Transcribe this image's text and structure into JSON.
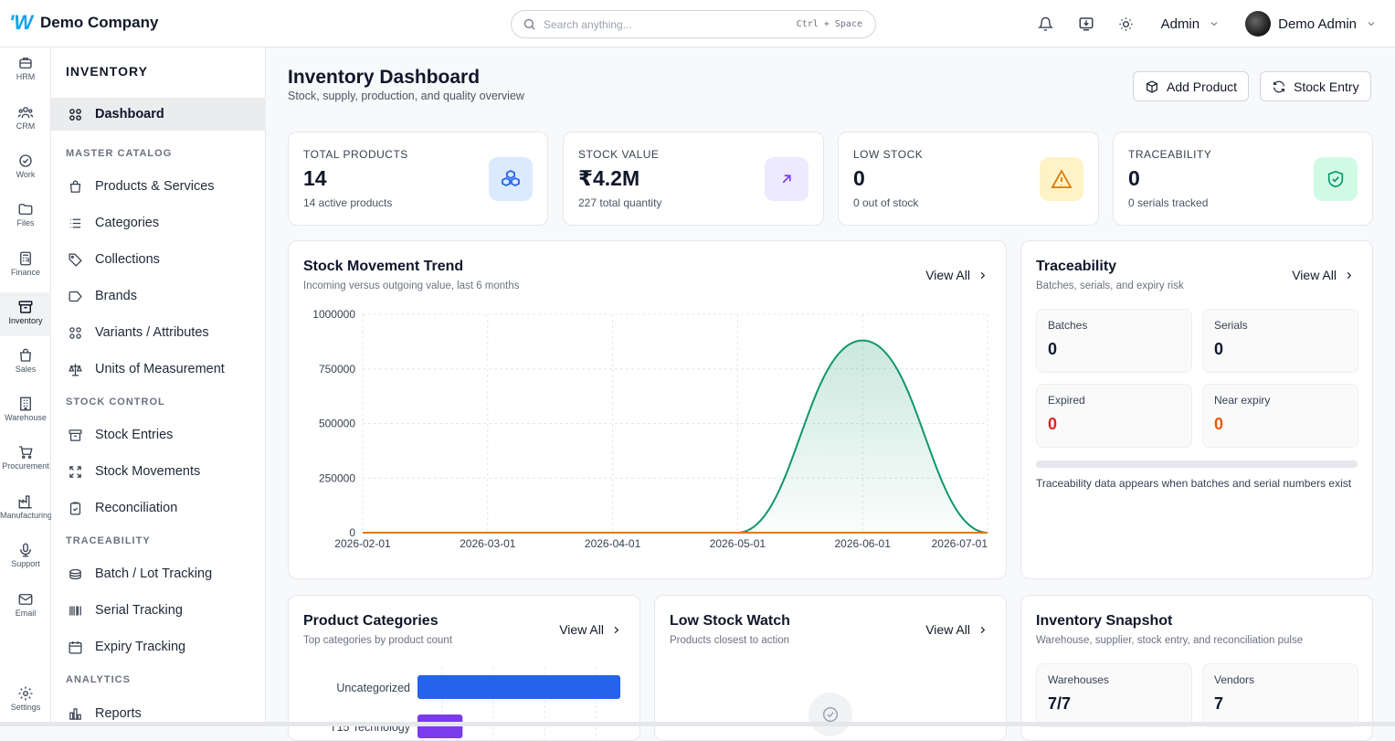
{
  "app": {
    "logo": "W",
    "company": "Demo Company"
  },
  "search": {
    "placeholder": "Search anything...",
    "shortcut": "Ctrl + Space"
  },
  "topbar": {
    "role_select": "Admin",
    "user_name": "Demo Admin",
    "icons": [
      "bell-icon",
      "download-icon",
      "sun-icon"
    ]
  },
  "rail": [
    {
      "label": "HRM",
      "icon": "briefcase-icon"
    },
    {
      "label": "CRM",
      "icon": "users-icon"
    },
    {
      "label": "Work",
      "icon": "check-circle-icon"
    },
    {
      "label": "Files",
      "icon": "folder-icon"
    },
    {
      "label": "Finance",
      "icon": "calculator-icon"
    },
    {
      "label": "Inventory",
      "icon": "archive-icon",
      "active": true
    },
    {
      "label": "Sales",
      "icon": "shopping-bag-icon"
    },
    {
      "label": "Warehouse",
      "icon": "building-icon"
    },
    {
      "label": "Procurement",
      "icon": "cart-icon"
    },
    {
      "label": "Manufacturing",
      "icon": "factory-icon"
    },
    {
      "label": "Support",
      "icon": "mic-icon"
    },
    {
      "label": "Email",
      "icon": "mail-icon"
    },
    {
      "label": "Settings",
      "icon": "settings-icon"
    }
  ],
  "sidenav": {
    "title": "INVENTORY",
    "dashboard": "Dashboard",
    "sections": {
      "master": "MASTER CATALOG",
      "stock": "STOCK CONTROL",
      "trace": "TRACEABILITY",
      "analytics": "ANALYTICS"
    },
    "items": {
      "products": "Products & Services",
      "categories": "Categories",
      "collections": "Collections",
      "brands": "Brands",
      "variants": "Variants / Attributes",
      "units": "Units of Measurement",
      "entries": "Stock Entries",
      "movements": "Stock Movements",
      "reconciliation": "Reconciliation",
      "batch": "Batch / Lot Tracking",
      "serial": "Serial Tracking",
      "expiry": "Expiry Tracking",
      "reports": "Reports"
    }
  },
  "page": {
    "title": "Inventory Dashboard",
    "subtitle": "Stock, supply, production, and quality overview",
    "add_product": "Add Product",
    "stock_entry": "Stock Entry"
  },
  "kpis": [
    {
      "label": "TOTAL PRODUCTS",
      "value": "14",
      "sub": "14 active products",
      "icon": "boxes-icon",
      "color": "#2563eb",
      "bg": "#dbeafe"
    },
    {
      "label": "STOCK VALUE",
      "value": "₹4.2M",
      "sub": "227 total quantity",
      "icon": "arrow-up-right-icon",
      "color": "#7c3aed",
      "bg": "#ede9fe"
    },
    {
      "label": "LOW STOCK",
      "value": "0",
      "sub": "0 out of stock",
      "icon": "warning-icon",
      "color": "#d97706",
      "bg": "#fef3c7"
    },
    {
      "label": "TRACEABILITY",
      "value": "0",
      "sub": "0 serials tracked",
      "icon": "shield-check-icon",
      "color": "#059669",
      "bg": "#d1fae5"
    }
  ],
  "trend": {
    "title": "Stock Movement Trend",
    "subtitle": "Incoming versus outgoing value, last 6 months",
    "view_all": "View All"
  },
  "traceability": {
    "title": "Traceability",
    "subtitle": "Batches, serials, and expiry risk",
    "view_all": "View All",
    "tiles": [
      {
        "label": "Batches",
        "value": "0",
        "color": "#0f172a"
      },
      {
        "label": "Serials",
        "value": "0",
        "color": "#0f172a"
      },
      {
        "label": "Expired",
        "value": "0",
        "color": "#dc2626"
      },
      {
        "label": "Near expiry",
        "value": "0",
        "color": "#ea580c"
      }
    ],
    "note": "Traceability data appears when batches and serial numbers exist"
  },
  "categories_card": {
    "title": "Product Categories",
    "subtitle": "Top categories by product count",
    "view_all": "View All"
  },
  "low_stock_card": {
    "title": "Low Stock Watch",
    "subtitle": "Products closest to action",
    "view_all": "View All"
  },
  "snapshot": {
    "title": "Inventory Snapshot",
    "subtitle": "Warehouse, supplier, stock entry, and reconciliation pulse",
    "tiles": [
      {
        "label": "Warehouses",
        "value": "7/7"
      },
      {
        "label": "Vendors",
        "value": "7"
      }
    ]
  },
  "chart_data": [
    {
      "type": "area",
      "title": "Stock Movement Trend",
      "x": [
        "2026-02-01",
        "2026-03-01",
        "2026-04-01",
        "2026-05-01",
        "2026-06-01",
        "2026-07-01"
      ],
      "ylim": [
        0,
        1000000
      ],
      "yticks": [
        0,
        250000,
        500000,
        750000,
        1000000
      ],
      "grid": true,
      "series": [
        {
          "values": [
            0,
            0,
            0,
            0,
            880000,
            0
          ],
          "color": "#10976a"
        },
        {
          "values": [
            0,
            0,
            0,
            0,
            0,
            0
          ],
          "color": "#e07b12"
        }
      ]
    },
    {
      "type": "bar",
      "orientation": "horizontal",
      "title": "Product Categories",
      "categories": [
        "Uncategorized",
        "T15 Technology"
      ],
      "values": [
        9,
        2
      ],
      "colors": [
        "#2563eb",
        "#7c3aed"
      ]
    }
  ]
}
